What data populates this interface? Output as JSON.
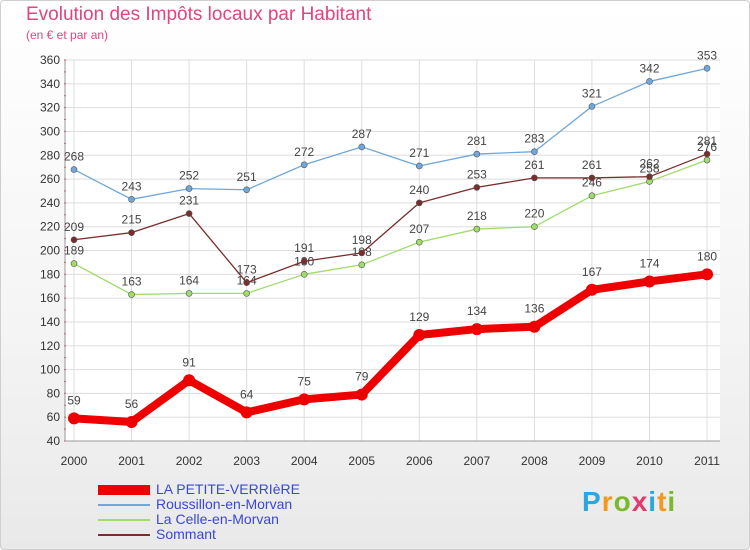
{
  "header": {
    "title": "Evolution des Impôts locaux par Habitant",
    "subtitle": "(en € et par an)"
  },
  "brand": {
    "text": "Proxiti",
    "colors": [
      "#2aa7e0",
      "#f29a1f",
      "#7ab929",
      "#e23b6b",
      "#2aa7e0",
      "#f29a1f",
      "#7ab929"
    ]
  },
  "chart_data": {
    "type": "line",
    "title": "Evolution des Impôts locaux par Habitant",
    "subtitle": "(en € et par an)",
    "xlabel": "",
    "ylabel": "",
    "categories": [
      "2000",
      "2001",
      "2002",
      "2003",
      "2004",
      "2005",
      "2006",
      "2007",
      "2008",
      "2009",
      "2010",
      "2011"
    ],
    "ylim": [
      40,
      360
    ],
    "yticks": [
      40,
      60,
      80,
      100,
      120,
      140,
      160,
      180,
      200,
      220,
      240,
      260,
      280,
      300,
      320,
      340,
      360
    ],
    "grid": true,
    "legend_position": "bottom-left",
    "series": [
      {
        "name": "LA PETITE-VERRIèRE",
        "color": "#ee0000",
        "values": [
          59,
          56,
          91,
          64,
          75,
          79,
          129,
          134,
          136,
          167,
          174,
          180
        ]
      },
      {
        "name": "Roussillon-en-Morvan",
        "color": "#6fa8dc",
        "values": [
          268,
          243,
          252,
          251,
          272,
          287,
          271,
          281,
          283,
          321,
          342,
          353
        ]
      },
      {
        "name": "La Celle-en-Morvan",
        "color": "#9fdc6a",
        "values": [
          189,
          163,
          164,
          164,
          180,
          188,
          207,
          218,
          220,
          246,
          258,
          276
        ]
      },
      {
        "name": "Sommant",
        "color": "#7a2d2d",
        "values": [
          209,
          215,
          231,
          173,
          191,
          198,
          240,
          253,
          261,
          261,
          262,
          281
        ]
      }
    ]
  }
}
